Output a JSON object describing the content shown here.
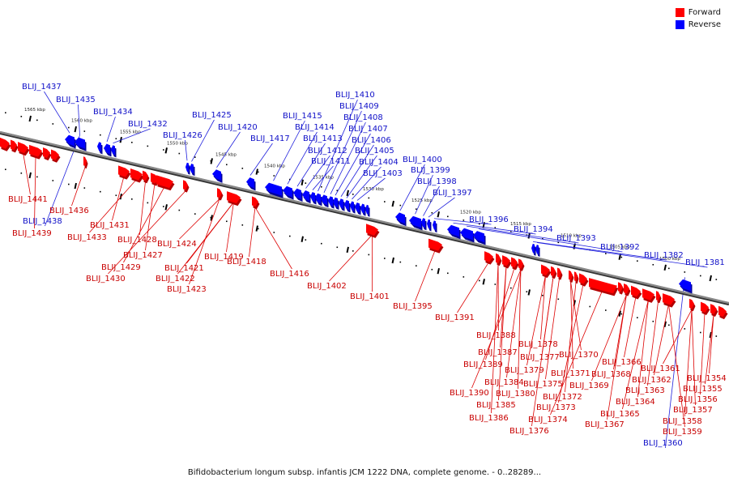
{
  "colors": {
    "forward": "#ff0000",
    "forward_dark": "#b40000",
    "reverse": "#0000ff",
    "reverse_dark": "#00009a",
    "label_forward": "#c80000",
    "label_reverse": "#1010c8",
    "leader_forward": "#dd0000",
    "leader_reverse": "#2020dd",
    "backbone": "#888888",
    "backbone_edge": "#333333",
    "tick": "#000000"
  },
  "legend": {
    "forward_label": "Forward",
    "reverse_label": "Reverse"
  },
  "caption": "Bifidobacterium longum subsp. infantis JCM 1222 DNA, complete genome. - 0..28289...",
  "kbp_labels": [
    "1565 kbp",
    "1560 kbp",
    "1555 kbp",
    "1550 kbp",
    "1545 kbp",
    "1540 kbp",
    "1535 kbp",
    "1530 kbp",
    "1525 kbp",
    "1520 kbp",
    "1515 kbp",
    "1510 kbp",
    "1505 kbp",
    "1500 kbp"
  ],
  "reverse_labels": [
    "BLIJ_1437",
    "BLIJ_1435",
    "BLIJ_1434",
    "BLIJ_1432",
    "BLIJ_1426",
    "BLIJ_1425",
    "BLIJ_1420",
    "BLIJ_1417",
    "BLIJ_1415",
    "BLIJ_1414",
    "BLIJ_1413",
    "BLIJ_1412",
    "BLIJ_1411",
    "BLIJ_1410",
    "BLIJ_1409",
    "BLIJ_1408",
    "BLIJ_1407",
    "BLIJ_1406",
    "BLIJ_1405",
    "BLIJ_1404",
    "BLIJ_1403",
    "BLIJ_1400",
    "BLIJ_1399",
    "BLIJ_1398",
    "BLIJ_1397",
    "BLIJ_1396",
    "BLIJ_1394",
    "BLIJ_1393",
    "BLIJ_1392",
    "BLIJ_1382",
    "BLIJ_1381",
    "BLIJ_1438",
    "BLIJ_1360"
  ],
  "forward_labels": [
    "BLIJ_1441",
    "BLIJ_1436",
    "BLIJ_1439",
    "BLIJ_1431",
    "BLIJ_1433",
    "BLIJ_1428",
    "BLIJ_1427",
    "BLIJ_1429",
    "BLIJ_1430",
    "BLIJ_1424",
    "BLIJ_1421",
    "BLIJ_1422",
    "BLIJ_1423",
    "BLIJ_1419",
    "BLIJ_1418",
    "BLIJ_1416",
    "BLIJ_1402",
    "BLIJ_1401",
    "BLIJ_1395",
    "BLIJ_1391",
    "BLIJ_1388",
    "BLIJ_1387",
    "BLIJ_1389",
    "BLIJ_1390",
    "BLIJ_1384",
    "BLIJ_1385",
    "BLIJ_1386",
    "BLIJ_1378",
    "BLIJ_1377",
    "BLIJ_1379",
    "BLIJ_1380",
    "BLIJ_1375",
    "BLIJ_1376",
    "BLIJ_1370",
    "BLIJ_1371",
    "BLIJ_1372",
    "BLIJ_1373",
    "BLIJ_1374",
    "BLIJ_1369",
    "BLIJ_1368",
    "BLIJ_1366",
    "BLIJ_1367",
    "BLIJ_1365",
    "BLIJ_1364",
    "BLIJ_1363",
    "BLIJ_1362",
    "BLIJ_1361",
    "BLIJ_1354",
    "BLIJ_1355",
    "BLIJ_1356",
    "BLIJ_1357",
    "BLIJ_1358",
    "BLIJ_1359"
  ]
}
